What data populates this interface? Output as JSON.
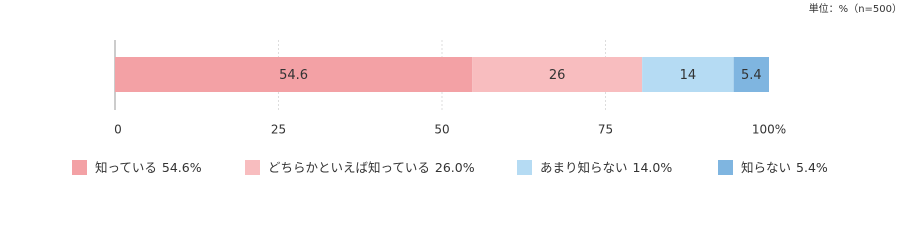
{
  "chart_data": {
    "type": "stacked-bar",
    "orientation": "horizontal",
    "note": "単位：%（n=500）",
    "series": [
      {
        "name": "知っている",
        "color": "#f3a1a5",
        "values": [
          54.6
        ],
        "value_labels": [
          "54.6%"
        ]
      },
      {
        "name": "どちらかといえば知っている",
        "color": "#f8bdbf",
        "values": [
          26.0
        ],
        "value_labels": [
          "26.0%"
        ]
      },
      {
        "name": "あまり知らない",
        "color": "#b5dbf3",
        "values": [
          14.0
        ],
        "value_labels": [
          "14.0%"
        ]
      },
      {
        "name": "知らない",
        "color": "#7fb5e0",
        "values": [
          5.4
        ],
        "value_labels": [
          "5.4%"
        ]
      }
    ],
    "xlim": [
      0,
      100
    ],
    "xticks": [
      0,
      25,
      50,
      75,
      {
        "value": 100,
        "label": "100%"
      }
    ],
    "grid": true
  }
}
